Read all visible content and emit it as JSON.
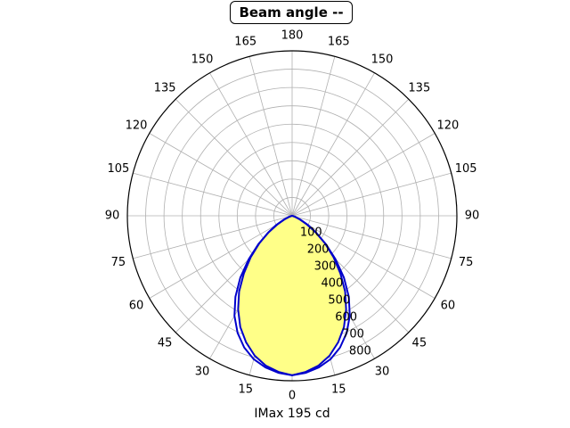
{
  "chart_data": {
    "type": "polar",
    "title": "Beam angle --",
    "xlabel": "IMax 195 cd",
    "angle_tick_labels": [
      "0",
      "15",
      "30",
      "45",
      "60",
      "75",
      "90",
      "105",
      "120",
      "135",
      "150",
      "165",
      "180"
    ],
    "radial_tick_labels": [
      "100",
      "200",
      "300",
      "400",
      "500",
      "600",
      "700",
      "800"
    ],
    "rmax": 900,
    "grid": true,
    "series": [
      {
        "angles_deg": [
          0,
          5,
          10,
          15,
          20,
          25,
          30,
          35,
          40,
          45,
          50,
          55,
          60,
          65,
          70,
          75,
          80,
          85,
          90
        ],
        "values": [
          870,
          855,
          830,
          790,
          735,
          670,
          590,
          505,
          410,
          320,
          235,
          160,
          100,
          50,
          18,
          5,
          0,
          0,
          0
        ],
        "color": "#0000cc",
        "fill": "#ffff88"
      },
      {
        "angles_deg": [
          0,
          5,
          10,
          15,
          20,
          25,
          30,
          35,
          40,
          45,
          50,
          55,
          60,
          65,
          70,
          75,
          80,
          85,
          90
        ],
        "values": [
          870,
          860,
          840,
          810,
          765,
          705,
          630,
          540,
          440,
          335,
          240,
          155,
          90,
          45,
          15,
          4,
          0,
          0,
          0
        ],
        "color": "#0000cc",
        "fill": "none"
      }
    ]
  }
}
